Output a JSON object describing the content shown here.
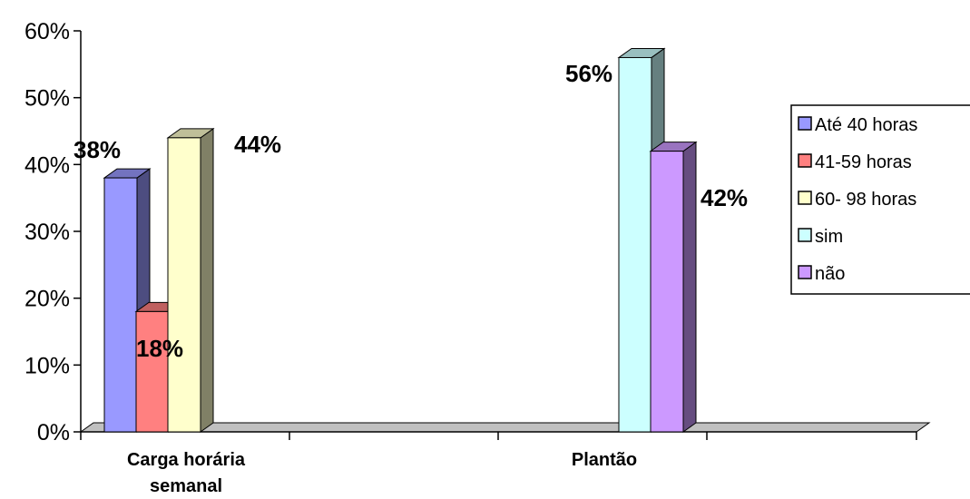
{
  "chart_data": {
    "type": "bar",
    "ylim": [
      0,
      0.6
    ],
    "y_ticks": [
      "0%",
      "10%",
      "20%",
      "30%",
      "40%",
      "50%",
      "60%"
    ],
    "categories": [
      "Carga horária semanal",
      "Plantão"
    ],
    "series": [
      {
        "name": "Até 40 horas",
        "category": "Carga horária semanal",
        "value": 0.38,
        "label": "38%",
        "color": "#9999ff"
      },
      {
        "name": "41-59 horas",
        "category": "Carga horária semanal",
        "value": 0.18,
        "label": "18%",
        "color": "#ff8080"
      },
      {
        "name": "60- 98 horas",
        "category": "Carga horária semanal",
        "value": 0.44,
        "label": "44%",
        "color": "#ffffcc"
      },
      {
        "name": "sim",
        "category": "Plantão",
        "value": 0.56,
        "label": "56%",
        "color": "#ccffff"
      },
      {
        "name": "não",
        "category": "Plantão",
        "value": 0.42,
        "label": "42%",
        "color": "#cc99ff"
      }
    ],
    "legend_position": "right",
    "grid": false,
    "style": "3d-column"
  }
}
